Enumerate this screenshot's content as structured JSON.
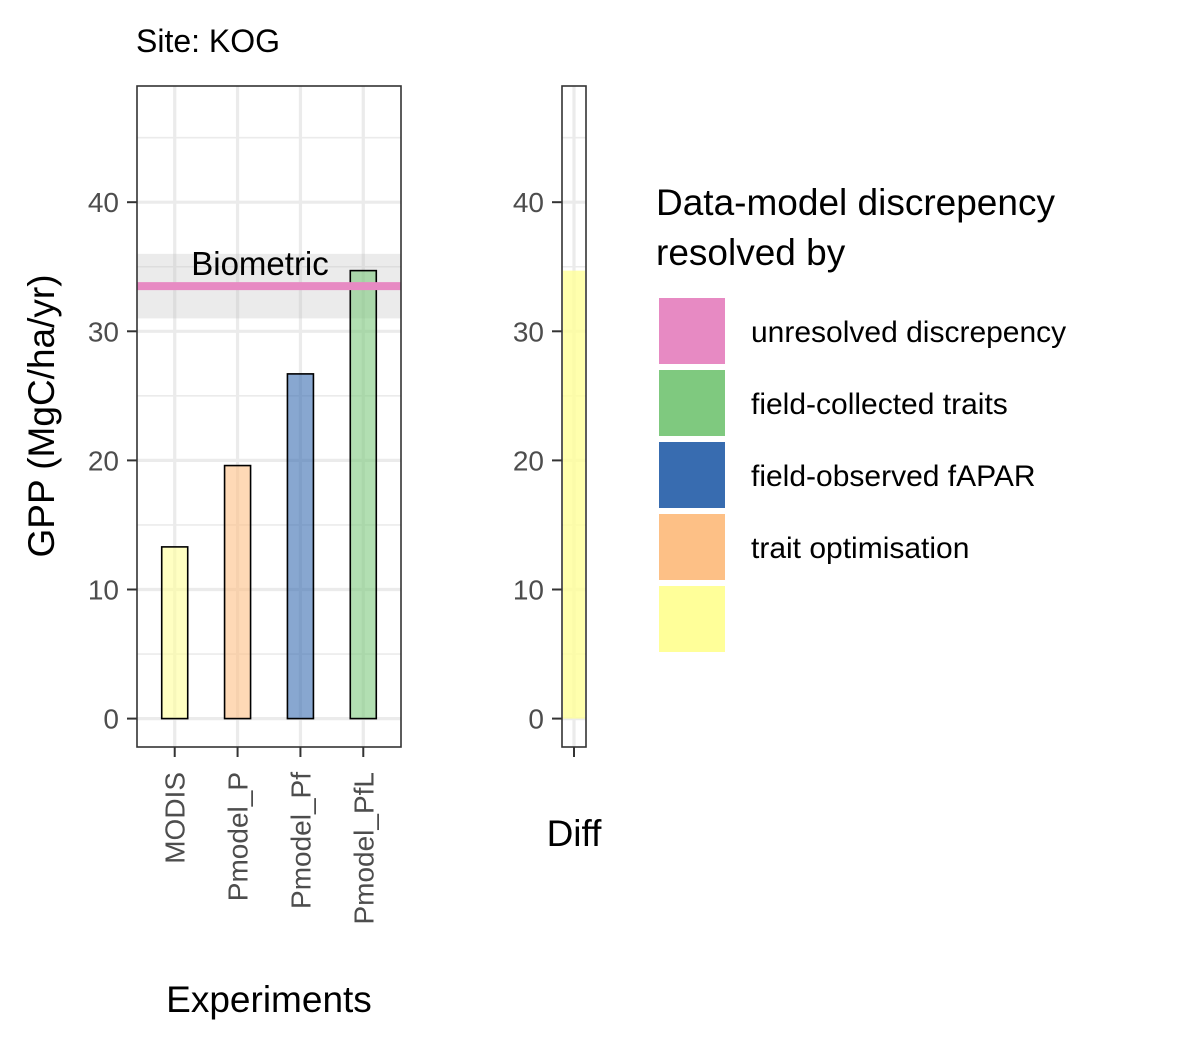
{
  "chart_data": [
    {
      "type": "bar",
      "title": "Site: KOG",
      "xlabel": "Experiments",
      "ylabel": "GPP (MgC/ha/yr)",
      "ylim": [
        -2.2,
        49
      ],
      "yticks": [
        0,
        10,
        20,
        30,
        40
      ],
      "grid": true,
      "categories": [
        "MODIS",
        "Pmodel_P",
        "Pmodel_Pf",
        "Pmodel_PfL"
      ],
      "values": [
        13.3,
        19.6,
        26.7,
        34.7
      ],
      "colors": [
        "#ffff99",
        "#fdc086",
        "#386cb0",
        "#7fc97f"
      ],
      "reference": {
        "label": "Biometric",
        "value": 33.5,
        "band": [
          31.0,
          36.0
        ],
        "color": "#e78ac3"
      }
    },
    {
      "type": "bar",
      "title": "",
      "xlabel": "",
      "ylabel": "",
      "ylim": [
        -2.2,
        49
      ],
      "yticks": [
        0,
        10,
        20,
        30,
        40
      ],
      "grid": true,
      "categories": [
        "Diff"
      ],
      "values": [
        34.7
      ],
      "colors": [
        "#ffff99"
      ]
    }
  ],
  "legend": {
    "title_lines": [
      "Data-model discrepency",
      "resolved by"
    ],
    "items": [
      {
        "label": "unresolved discrepency",
        "color": "#e78ac3"
      },
      {
        "label": "field-collected traits",
        "color": "#7fc97f"
      },
      {
        "label": "field-observed fAPAR",
        "color": "#386cb0"
      },
      {
        "label": "trait optimisation",
        "color": "#fdc086"
      },
      {
        "label": "",
        "color": "#ffff99"
      }
    ]
  }
}
